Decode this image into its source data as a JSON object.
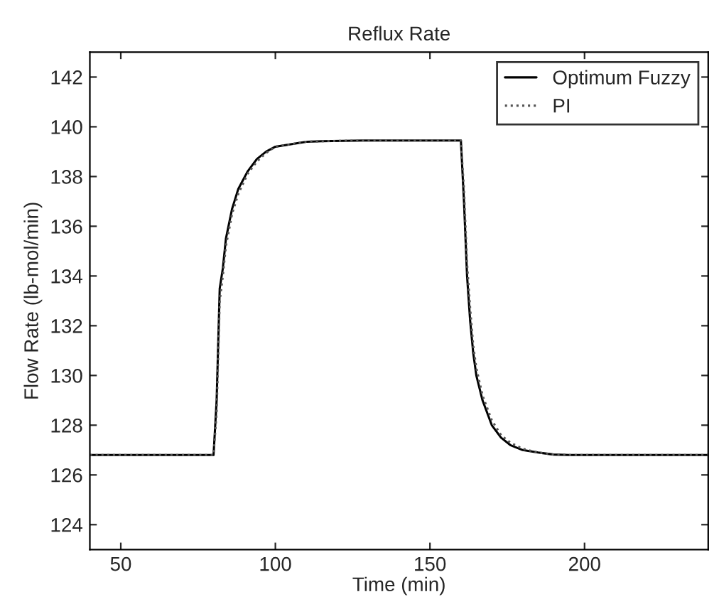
{
  "chart_data": {
    "type": "line",
    "title": "Reflux Rate",
    "xlabel": "Time (min)",
    "ylabel": "Flow Rate (lb-mol/min)",
    "xlim": [
      40,
      240
    ],
    "ylim": [
      123,
      143
    ],
    "xticks": [
      50,
      100,
      150,
      200
    ],
    "yticks": [
      124,
      126,
      128,
      130,
      132,
      134,
      136,
      138,
      140,
      142
    ],
    "grid": false,
    "legend": "top right",
    "series": [
      {
        "name": "Optimum Fuzzy",
        "color": "#000000",
        "line_style": "solid",
        "x": [
          40,
          80,
          81,
          82,
          83,
          84,
          86,
          88,
          91,
          94,
          97,
          100,
          105,
          110,
          115,
          130,
          160,
          161,
          162,
          163,
          164,
          165,
          167,
          170,
          173,
          176,
          180,
          185,
          190,
          195,
          200,
          240
        ],
        "values": [
          126.8,
          126.8,
          129,
          133.5,
          134.3,
          135.5,
          136.7,
          137.5,
          138.2,
          138.7,
          139,
          139.2,
          139.3,
          139.4,
          139.42,
          139.45,
          139.45,
          137,
          134,
          132.2,
          130.9,
          130,
          129,
          128,
          127.5,
          127.2,
          127,
          126.9,
          126.82,
          126.8,
          126.8,
          126.8
        ]
      },
      {
        "name": "PI",
        "color": "#555555",
        "line_style": "dotted",
        "x": [
          40,
          80,
          81,
          82,
          83,
          84,
          86,
          88,
          91,
          94,
          97,
          100,
          105,
          110,
          115,
          130,
          160,
          161,
          162,
          163,
          164,
          165,
          167,
          170,
          173,
          176,
          180,
          185,
          190,
          195,
          200,
          240
        ],
        "values": [
          126.8,
          126.8,
          128.5,
          133,
          134,
          135.2,
          136.5,
          137.3,
          138.1,
          138.6,
          138.95,
          139.2,
          139.3,
          139.4,
          139.42,
          139.45,
          139.45,
          137.5,
          134.5,
          132.7,
          131.2,
          130.3,
          129.2,
          128.2,
          127.6,
          127.3,
          127.05,
          126.9,
          126.82,
          126.8,
          126.8,
          126.8
        ]
      }
    ]
  }
}
